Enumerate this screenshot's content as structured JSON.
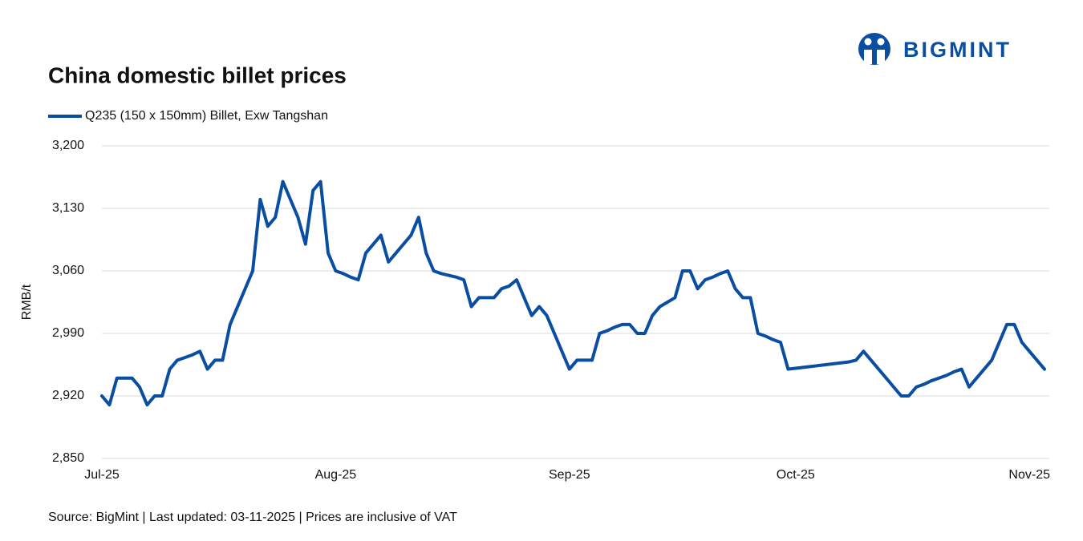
{
  "logo": "BIGMINT",
  "chart_data": {
    "type": "line",
    "title": "China domestic billet prices",
    "y_label": "RMB/t",
    "note": "Source: BigMint | Last updated: 03-11-2025 | Prices are inclusive of VAT",
    "categories": [
      "Jul-25",
      null,
      null,
      null,
      null,
      null,
      null,
      null,
      null,
      null,
      null,
      null,
      null,
      null,
      null,
      null,
      null,
      null,
      null,
      null,
      null,
      null,
      null,
      null,
      null,
      null,
      null,
      null,
      null,
      null,
      null,
      "Aug-25",
      null,
      null,
      null,
      null,
      null,
      null,
      null,
      null,
      null,
      null,
      null,
      null,
      null,
      null,
      null,
      null,
      null,
      null,
      null,
      null,
      null,
      null,
      null,
      null,
      null,
      null,
      null,
      null,
      null,
      null,
      "Sep-25",
      null,
      null,
      null,
      null,
      null,
      null,
      null,
      null,
      null,
      null,
      null,
      null,
      null,
      null,
      null,
      null,
      null,
      null,
      null,
      null,
      null,
      null,
      null,
      null,
      null,
      null,
      null,
      null,
      null,
      "Oct-25",
      null,
      null,
      null,
      null,
      null,
      null,
      null,
      null,
      null,
      null,
      null,
      null,
      null,
      null,
      null,
      null,
      null,
      null,
      null,
      null,
      null,
      null,
      null,
      null,
      null,
      null,
      null,
      null,
      null,
      null,
      "Nov-25",
      null,
      null
    ],
    "series": [
      {
        "name": "Q235 (150 x 150mm) Billet, Exw Tangshan",
        "color": "#0a4ea2",
        "values": [
          2920,
          2910,
          2940,
          2940,
          2940,
          2930,
          2910,
          2920,
          2920,
          2950,
          2960,
          2963,
          2966,
          2970,
          2950,
          2960,
          2960,
          3000,
          3020,
          3040,
          3060,
          3140,
          3110,
          3120,
          3160,
          3140,
          3120,
          3090,
          3150,
          3160,
          3080,
          3060,
          3057,
          3053,
          3050,
          3080,
          3090,
          3100,
          3070,
          3080,
          3090,
          3100,
          3120,
          3080,
          3060,
          3057,
          3055,
          3053,
          3050,
          3020,
          3030,
          3030,
          3030,
          3040,
          3043,
          3050,
          3030,
          3010,
          3020,
          3010,
          2990,
          2970,
          2950,
          2960,
          2960,
          2960,
          2990,
          2993,
          2997,
          3000,
          3000,
          2990,
          2990,
          3010,
          3020,
          3025,
          3030,
          3060,
          3060,
          3040,
          3050,
          3053,
          3057,
          3060,
          3040,
          3030,
          3030,
          2990,
          2987,
          2983,
          2980,
          2950,
          2951,
          2952,
          2953,
          2954,
          2955,
          2956,
          2957,
          2958,
          2960,
          2970,
          2960,
          2950,
          2940,
          2930,
          2920,
          2920,
          2930,
          2933,
          2937,
          2940,
          2943,
          2947,
          2950,
          2930,
          2940,
          2950,
          2960,
          2980,
          3000,
          3000,
          2980,
          2970,
          2960,
          2950
        ]
      }
    ],
    "ylim": [
      2850,
      3200
    ],
    "yticks": [
      {
        "value": 2850,
        "label": "2,850"
      },
      {
        "value": 2920,
        "label": "2,920"
      },
      {
        "value": 2990,
        "label": "2,990"
      },
      {
        "value": 3060,
        "label": "3,060"
      },
      {
        "value": 3130,
        "label": "3,130"
      },
      {
        "value": 3200,
        "label": "3,200"
      }
    ],
    "grid": true
  }
}
